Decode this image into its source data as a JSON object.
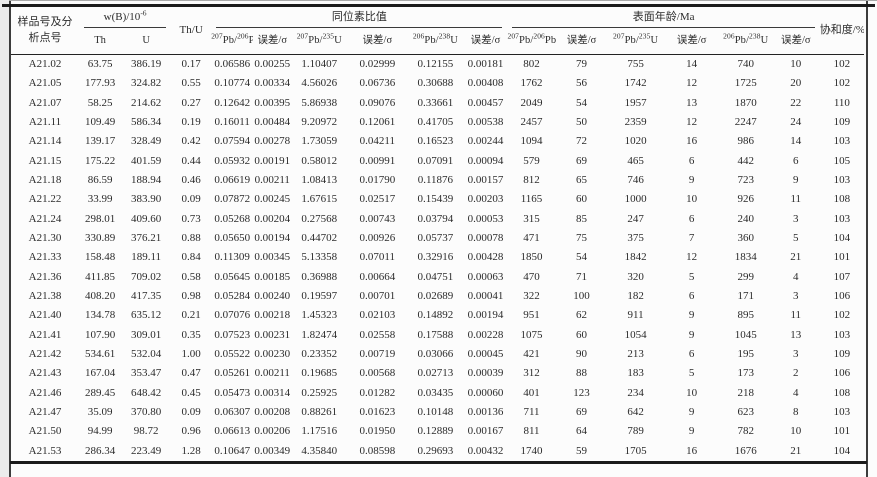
{
  "header": {
    "sample_line1": "样品号及分",
    "sample_line2": "析点号",
    "wb": {
      "base": "w(B)/10",
      "sup": "-6"
    },
    "th_label": "Th",
    "u_label": "U",
    "th_u_label": "Th/U",
    "isotope_group": "同位素比值",
    "age_group": "表面年龄/Ma",
    "concordance": "协和度/%",
    "error_label": "误差/σ",
    "isotopes": {
      "pb207_pb206": {
        "sup1": "207",
        "base1": "Pb/",
        "sup2": "206",
        "base2": "Pb"
      },
      "pb207_u235": {
        "sup1": "207",
        "base1": "Pb/",
        "sup2": "235",
        "base2": "U"
      },
      "pb206_u238": {
        "sup1": "206",
        "base1": "Pb/",
        "sup2": "238",
        "base2": "U"
      }
    }
  },
  "rows": [
    [
      "A21.02",
      "63.75",
      "386.19",
      "0.17",
      "0.06586",
      "0.00255",
      "1.10407",
      "0.02999",
      "0.12155",
      "0.00181",
      "802",
      "79",
      "755",
      "14",
      "740",
      "10",
      "102"
    ],
    [
      "A21.05",
      "177.93",
      "324.82",
      "0.55",
      "0.10774",
      "0.00334",
      "4.56026",
      "0.06736",
      "0.30688",
      "0.00408",
      "1762",
      "56",
      "1742",
      "12",
      "1725",
      "20",
      "102"
    ],
    [
      "A21.07",
      "58.25",
      "214.62",
      "0.27",
      "0.12642",
      "0.00395",
      "5.86938",
      "0.09076",
      "0.33661",
      "0.00457",
      "2049",
      "54",
      "1957",
      "13",
      "1870",
      "22",
      "110"
    ],
    [
      "A21.11",
      "109.49",
      "586.34",
      "0.19",
      "0.16011",
      "0.00484",
      "9.20972",
      "0.12061",
      "0.41705",
      "0.00538",
      "2457",
      "50",
      "2359",
      "12",
      "2247",
      "24",
      "109"
    ],
    [
      "A21.14",
      "139.17",
      "328.49",
      "0.42",
      "0.07594",
      "0.00278",
      "1.73059",
      "0.04211",
      "0.16523",
      "0.00244",
      "1094",
      "72",
      "1020",
      "16",
      "986",
      "14",
      "103"
    ],
    [
      "A21.15",
      "175.22",
      "401.59",
      "0.44",
      "0.05932",
      "0.00191",
      "0.58012",
      "0.00991",
      "0.07091",
      "0.00094",
      "579",
      "69",
      "465",
      "6",
      "442",
      "6",
      "105"
    ],
    [
      "A21.18",
      "86.59",
      "188.94",
      "0.46",
      "0.06619",
      "0.00211",
      "1.08413",
      "0.01790",
      "0.11876",
      "0.00157",
      "812",
      "65",
      "746",
      "9",
      "723",
      "9",
      "103"
    ],
    [
      "A21.22",
      "33.99",
      "383.90",
      "0.09",
      "0.07872",
      "0.00245",
      "1.67615",
      "0.02517",
      "0.15439",
      "0.00203",
      "1165",
      "60",
      "1000",
      "10",
      "926",
      "11",
      "108"
    ],
    [
      "A21.24",
      "298.01",
      "409.60",
      "0.73",
      "0.05268",
      "0.00204",
      "0.27568",
      "0.00743",
      "0.03794",
      "0.00053",
      "315",
      "85",
      "247",
      "6",
      "240",
      "3",
      "103"
    ],
    [
      "A21.30",
      "330.89",
      "376.21",
      "0.88",
      "0.05650",
      "0.00194",
      "0.44702",
      "0.00926",
      "0.05737",
      "0.00078",
      "471",
      "75",
      "375",
      "7",
      "360",
      "5",
      "104"
    ],
    [
      "A21.33",
      "158.48",
      "189.11",
      "0.84",
      "0.11309",
      "0.00345",
      "5.13358",
      "0.07011",
      "0.32916",
      "0.00428",
      "1850",
      "54",
      "1842",
      "12",
      "1834",
      "21",
      "101"
    ],
    [
      "A21.36",
      "411.85",
      "709.02",
      "0.58",
      "0.05645",
      "0.00185",
      "0.36988",
      "0.00664",
      "0.04751",
      "0.00063",
      "470",
      "71",
      "320",
      "5",
      "299",
      "4",
      "107"
    ],
    [
      "A21.38",
      "408.20",
      "417.35",
      "0.98",
      "0.05284",
      "0.00240",
      "0.19597",
      "0.00701",
      "0.02689",
      "0.00041",
      "322",
      "100",
      "182",
      "6",
      "171",
      "3",
      "106"
    ],
    [
      "A21.40",
      "134.78",
      "635.12",
      "0.21",
      "0.07076",
      "0.00218",
      "1.45323",
      "0.02103",
      "0.14892",
      "0.00194",
      "951",
      "62",
      "911",
      "9",
      "895",
      "11",
      "102"
    ],
    [
      "A21.41",
      "107.90",
      "309.01",
      "0.35",
      "0.07523",
      "0.00231",
      "1.82474",
      "0.02558",
      "0.17588",
      "0.00228",
      "1075",
      "60",
      "1054",
      "9",
      "1045",
      "13",
      "103"
    ],
    [
      "A21.42",
      "534.61",
      "532.04",
      "1.00",
      "0.05522",
      "0.00230",
      "0.23352",
      "0.00719",
      "0.03066",
      "0.00045",
      "421",
      "90",
      "213",
      "6",
      "195",
      "3",
      "109"
    ],
    [
      "A21.43",
      "167.04",
      "353.47",
      "0.47",
      "0.05261",
      "0.00211",
      "0.19685",
      "0.00568",
      "0.02713",
      "0.00039",
      "312",
      "88",
      "183",
      "5",
      "173",
      "2",
      "106"
    ],
    [
      "A21.46",
      "289.45",
      "648.42",
      "0.45",
      "0.05473",
      "0.00314",
      "0.25925",
      "0.01282",
      "0.03435",
      "0.00060",
      "401",
      "123",
      "234",
      "10",
      "218",
      "4",
      "108"
    ],
    [
      "A21.47",
      "35.09",
      "370.80",
      "0.09",
      "0.06307",
      "0.00208",
      "0.88261",
      "0.01623",
      "0.10148",
      "0.00136",
      "711",
      "69",
      "642",
      "9",
      "623",
      "8",
      "103"
    ],
    [
      "A21.50",
      "94.99",
      "98.72",
      "0.96",
      "0.06613",
      "0.00206",
      "1.17516",
      "0.01950",
      "0.12889",
      "0.00167",
      "811",
      "64",
      "789",
      "9",
      "782",
      "10",
      "101"
    ],
    [
      "A21.53",
      "286.34",
      "223.49",
      "1.28",
      "0.10647",
      "0.00349",
      "4.35840",
      "0.08598",
      "0.29693",
      "0.00432",
      "1740",
      "59",
      "1705",
      "16",
      "1676",
      "21",
      "104"
    ]
  ],
  "colors": {
    "text": "#2b2b2b",
    "rule": "#1b1b1b",
    "background": "#fcfcfc"
  }
}
